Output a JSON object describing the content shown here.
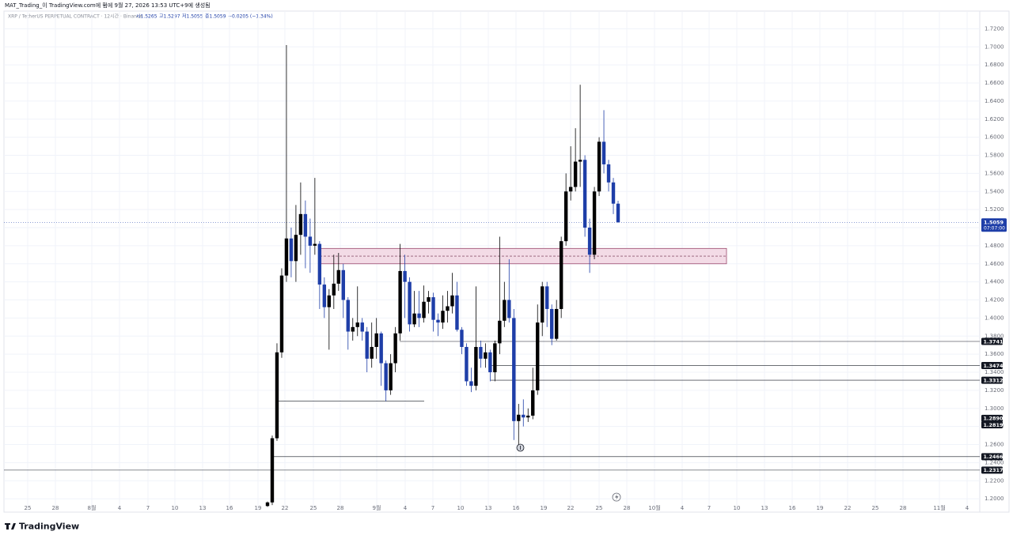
{
  "chart_data": {
    "type": "candlestick",
    "header": {
      "title": "MAT_Trading_이 TradingView.com에 펌에 9월 27, 2026 13:53 UTC+9에 생성됨",
      "symbol": "XRP / TetherUS PERPETUAL CONTRACT · 12시간 · Binance",
      "open": "시1.5265",
      "high": "고1.5297",
      "low": "저1.5055",
      "close": "종1.5059",
      "change": "−0.0205 (−1.34%)"
    },
    "brand": "TradingView",
    "categories": [
      "25",
      "28",
      "8월",
      "4",
      "7",
      "10",
      "13",
      "16",
      "19",
      "22",
      "25",
      "28",
      "9월",
      "4",
      "7",
      "10",
      "13",
      "16",
      "19",
      "22",
      "25",
      "28",
      "10월",
      "4",
      "7",
      "10",
      "13",
      "16",
      "19",
      "22",
      "25",
      "28",
      "11월",
      "4"
    ],
    "candles": {
      "open": [
        1.192,
        1.196,
        1.267,
        1.362,
        1.447,
        1.488,
        1.463,
        1.492,
        1.515,
        1.49,
        1.48,
        1.482,
        1.437,
        1.412,
        1.425,
        1.438,
        1.453,
        1.42,
        1.385,
        1.39,
        1.395,
        1.385,
        1.355,
        1.368,
        1.383,
        1.35,
        1.32,
        1.35,
        1.383,
        1.452,
        1.44,
        1.393,
        1.405,
        1.4,
        1.418,
        1.423,
        1.398,
        1.395,
        1.408,
        1.413,
        1.425,
        1.387,
        1.368,
        1.33,
        1.325,
        1.368,
        1.355,
        1.362,
        1.34,
        1.372,
        1.397,
        1.42,
        1.4,
        1.286,
        1.293,
        1.29,
        1.292,
        1.32,
        1.395,
        1.435,
        1.41,
        1.377,
        1.41,
        1.485,
        1.54,
        1.545,
        1.573,
        1.575,
        1.5,
        1.47,
        1.54,
        1.595,
        1.57,
        1.55,
        1.5265
      ],
      "high": [
        1.197,
        1.27,
        1.372,
        1.455,
        1.702,
        1.5,
        1.525,
        1.55,
        1.53,
        1.51,
        1.555,
        1.485,
        1.445,
        1.432,
        1.47,
        1.472,
        1.46,
        1.423,
        1.4,
        1.435,
        1.4,
        1.39,
        1.395,
        1.4,
        1.385,
        1.353,
        1.36,
        1.39,
        1.482,
        1.47,
        1.445,
        1.43,
        1.43,
        1.436,
        1.43,
        1.428,
        1.405,
        1.425,
        1.43,
        1.45,
        1.44,
        1.39,
        1.372,
        1.345,
        1.435,
        1.375,
        1.372,
        1.365,
        1.375,
        1.49,
        1.44,
        1.465,
        1.41,
        1.305,
        1.31,
        1.3,
        1.345,
        1.415,
        1.44,
        1.44,
        1.415,
        1.42,
        1.49,
        1.56,
        1.59,
        1.61,
        1.658,
        1.58,
        1.51,
        1.545,
        1.6,
        1.63,
        1.575,
        1.555,
        1.5297
      ],
      "low": [
        1.191,
        1.193,
        1.264,
        1.356,
        1.44,
        1.445,
        1.44,
        1.47,
        1.455,
        1.45,
        1.47,
        1.41,
        1.4,
        1.365,
        1.41,
        1.43,
        1.4,
        1.365,
        1.375,
        1.38,
        1.375,
        1.34,
        1.345,
        1.355,
        1.325,
        1.308,
        1.315,
        1.34,
        1.375,
        1.4,
        1.385,
        1.39,
        1.39,
        1.395,
        1.405,
        1.385,
        1.38,
        1.388,
        1.395,
        1.405,
        1.385,
        1.36,
        1.325,
        1.318,
        1.32,
        1.345,
        1.345,
        1.33,
        1.33,
        1.36,
        1.39,
        1.395,
        1.265,
        1.26,
        1.28,
        1.285,
        1.288,
        1.315,
        1.38,
        1.39,
        1.37,
        1.375,
        1.4,
        1.48,
        1.53,
        1.54,
        1.545,
        1.49,
        1.45,
        1.465,
        1.535,
        1.56,
        1.54,
        1.515,
        1.5055
      ],
      "close": [
        1.196,
        1.267,
        1.362,
        1.447,
        1.488,
        1.463,
        1.492,
        1.515,
        1.49,
        1.48,
        1.482,
        1.437,
        1.412,
        1.425,
        1.438,
        1.453,
        1.42,
        1.385,
        1.39,
        1.395,
        1.385,
        1.355,
        1.368,
        1.383,
        1.35,
        1.32,
        1.35,
        1.383,
        1.452,
        1.44,
        1.393,
        1.405,
        1.4,
        1.418,
        1.423,
        1.398,
        1.395,
        1.408,
        1.413,
        1.425,
        1.387,
        1.368,
        1.33,
        1.325,
        1.368,
        1.355,
        1.362,
        1.34,
        1.372,
        1.397,
        1.42,
        1.4,
        1.286,
        1.293,
        1.29,
        1.292,
        1.32,
        1.395,
        1.435,
        1.41,
        1.377,
        1.41,
        1.485,
        1.54,
        1.545,
        1.573,
        1.575,
        1.5,
        1.47,
        1.54,
        1.595,
        1.57,
        1.55,
        1.5265,
        1.5059
      ]
    },
    "up_color": "#000000",
    "down_color": "#1e3ea8",
    "last_price": {
      "label": "1.5059",
      "countdown": "07:07:00",
      "color": "#1e3ea8"
    },
    "price_lines": [
      {
        "value": 1.3741,
        "label": "1.3741"
      },
      {
        "value": 1.3474,
        "label": "1.3474"
      },
      {
        "value": 1.3312,
        "label": "1.3312"
      },
      {
        "value": 1.2466,
        "label": "1.2466"
      },
      {
        "value": 1.2317,
        "label": "1.2317"
      }
    ],
    "price_markers": [
      {
        "value": 1.289,
        "label": "1.2890"
      },
      {
        "value": 1.2819,
        "label": "1.2819"
      }
    ],
    "levels": [
      1.308
    ],
    "zone": {
      "top": 1.477,
      "bottom": 1.46,
      "mid": 1.4685,
      "color": "#f3dbe6"
    },
    "ylim": [
      1.187,
      1.7387
    ],
    "yticks": [
      {
        "value": 1.2,
        "label": "1.2000"
      },
      {
        "value": 1.22,
        "label": "1.2200"
      },
      {
        "value": 1.24,
        "label": "1.2400"
      },
      {
        "value": 1.26,
        "label": "1.2600"
      },
      {
        "value": 1.28,
        "label": "1.2800"
      },
      {
        "value": 1.3,
        "label": "1.3000"
      },
      {
        "value": 1.32,
        "label": "1.3200"
      },
      {
        "value": 1.34,
        "label": "1.3400"
      },
      {
        "value": 1.36,
        "label": "1.3600"
      },
      {
        "value": 1.38,
        "label": "1.3800"
      },
      {
        "value": 1.4,
        "label": "1.4000"
      },
      {
        "value": 1.42,
        "label": "1.4200"
      },
      {
        "value": 1.44,
        "label": "1.4400"
      },
      {
        "value": 1.46,
        "label": "1.4600"
      },
      {
        "value": 1.48,
        "label": "1.4800"
      },
      {
        "value": 1.5,
        "label": "1.5000"
      },
      {
        "value": 1.52,
        "label": "1.5200"
      },
      {
        "value": 1.54,
        "label": "1.5400"
      },
      {
        "value": 1.56,
        "label": "1.5600"
      },
      {
        "value": 1.58,
        "label": "1.5800"
      },
      {
        "value": 1.6,
        "label": "1.6000"
      },
      {
        "value": 1.62,
        "label": "1.6200"
      },
      {
        "value": 1.64,
        "label": "1.6400"
      },
      {
        "value": 1.66,
        "label": "1.6600"
      },
      {
        "value": 1.68,
        "label": "1.6800"
      },
      {
        "value": 1.7,
        "label": "1.7000"
      },
      {
        "value": 1.72,
        "label": "1.7200"
      }
    ],
    "grid": true
  }
}
